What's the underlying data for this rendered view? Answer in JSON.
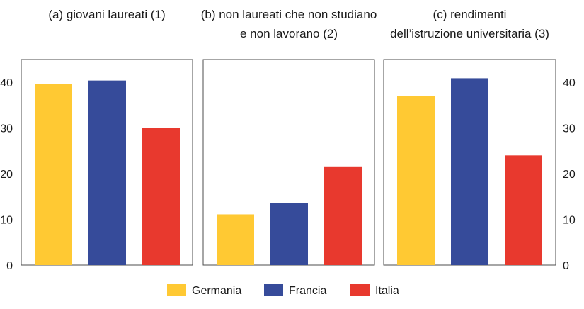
{
  "chart_data": [
    {
      "type": "bar",
      "title_lines": [
        "(a) giovani laureati (1)"
      ],
      "categories": [
        "Germania",
        "Francia",
        "Italia"
      ],
      "values": [
        39.7,
        40.4,
        30.0
      ],
      "ylim": [
        0,
        45
      ],
      "yticks": [
        0,
        10,
        20,
        30,
        40
      ],
      "ytick_side": "left",
      "colors": [
        "#FFC933",
        "#364B9A",
        "#E8392E"
      ]
    },
    {
      "type": "bar",
      "title_lines": [
        "(b) non laureati che non studiano",
        "e non lavorano (2)"
      ],
      "categories": [
        "Germania",
        "Francia",
        "Italia"
      ],
      "values": [
        11.1,
        13.5,
        21.6
      ],
      "ylim": [
        0,
        45
      ],
      "yticks": [],
      "ytick_side": "none",
      "colors": [
        "#FFC933",
        "#364B9A",
        "#E8392E"
      ]
    },
    {
      "type": "bar",
      "title_lines": [
        "(c) rendimenti",
        "dell’istruzione universitaria (3)"
      ],
      "categories": [
        "Germania",
        "Francia",
        "Italia"
      ],
      "values": [
        37.0,
        40.9,
        24.0
      ],
      "ylim": [
        0,
        45
      ],
      "yticks": [
        0,
        10,
        20,
        30,
        40
      ],
      "ytick_side": "right",
      "colors": [
        "#FFC933",
        "#364B9A",
        "#E8392E"
      ]
    }
  ],
  "legend": {
    "placement": "bottom",
    "items": [
      {
        "label": "Germania",
        "color": "#FFC933"
      },
      {
        "label": "Francia",
        "color": "#364B9A"
      },
      {
        "label": "Italia",
        "color": "#E8392E"
      }
    ]
  }
}
